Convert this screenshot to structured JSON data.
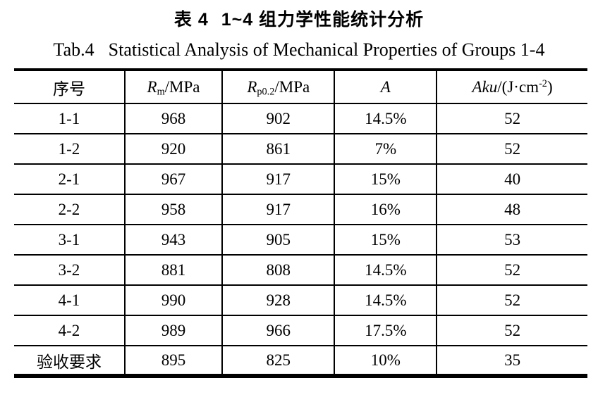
{
  "title": {
    "cn_label": "表 4",
    "cn_text": "1~4 组力学性能统计分析",
    "en_label": "Tab.4",
    "en_text": "Statistical Analysis of Mechanical Properties of Groups 1-4"
  },
  "table": {
    "header": {
      "seq": "序号",
      "rm_symbol": "R",
      "rm_sub": "m",
      "rm_unit": "/MPa",
      "rp_symbol": "R",
      "rp_sub": "p0.2",
      "rp_unit": "/MPa",
      "a_symbol": "A",
      "aku_symbol": "Aku",
      "aku_unit_pre": "/(J·cm",
      "aku_sup": "-2",
      "aku_unit_post": ")"
    },
    "rows": [
      [
        "1-1",
        "968",
        "902",
        "14.5%",
        "52"
      ],
      [
        "1-2",
        "920",
        "861",
        "7%",
        "52"
      ],
      [
        "2-1",
        "967",
        "917",
        "15%",
        "40"
      ],
      [
        "2-2",
        "958",
        "917",
        "16%",
        "48"
      ],
      [
        "3-1",
        "943",
        "905",
        "15%",
        "53"
      ],
      [
        "3-2",
        "881",
        "808",
        "14.5%",
        "52"
      ],
      [
        "4-1",
        "990",
        "928",
        "14.5%",
        "52"
      ],
      [
        "4-2",
        "989",
        "966",
        "17.5%",
        "52"
      ],
      [
        "验收要求",
        "895",
        "825",
        "10%",
        "35"
      ]
    ]
  },
  "colors": {
    "background": "#ffffff",
    "text": "#000000",
    "border": "#000000"
  }
}
